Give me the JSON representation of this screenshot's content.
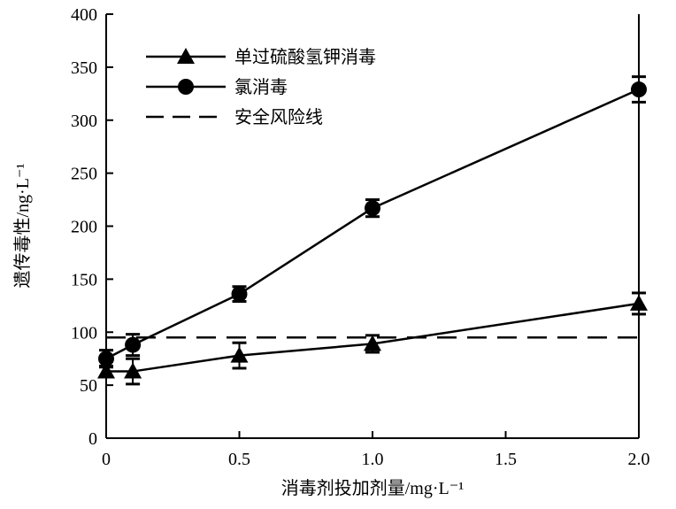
{
  "chart_data": {
    "type": "line",
    "xlabel": "消毒剂投加剂量/mg·L⁻¹",
    "ylabel": "遗传毒性/ng·L⁻¹",
    "xlim": [
      0,
      2.0
    ],
    "ylim": [
      0,
      400
    ],
    "xticks": [
      "0",
      "0.5",
      "1.0",
      "1.5",
      "2.0"
    ],
    "xtick_values": [
      0,
      0.5,
      1.0,
      1.5,
      2.0
    ],
    "yticks": [
      "0",
      "50",
      "100",
      "150",
      "200",
      "250",
      "300",
      "350",
      "400"
    ],
    "ytick_values": [
      0,
      50,
      100,
      150,
      200,
      250,
      300,
      350,
      400
    ],
    "grid": false,
    "legend_position": "top-left",
    "series": [
      {
        "name": "单过硫酸氢钾消毒",
        "marker": "triangle",
        "color": "#000000",
        "x": [
          0,
          0.1,
          0.5,
          1.0,
          2.0
        ],
        "y": [
          63,
          63,
          78,
          89,
          127
        ],
        "err": [
          5,
          12,
          12,
          8,
          10
        ]
      },
      {
        "name": "氯消毒",
        "marker": "circle",
        "color": "#000000",
        "x": [
          0,
          0.1,
          0.5,
          1.0,
          2.0
        ],
        "y": [
          75,
          88,
          136,
          217,
          329
        ],
        "err": [
          8,
          10,
          7,
          8,
          12
        ]
      },
      {
        "name": "安全风险线",
        "marker": "none",
        "style": "dashed",
        "color": "#000000",
        "x": [
          0,
          2.0
        ],
        "y": [
          95,
          95
        ]
      }
    ]
  }
}
